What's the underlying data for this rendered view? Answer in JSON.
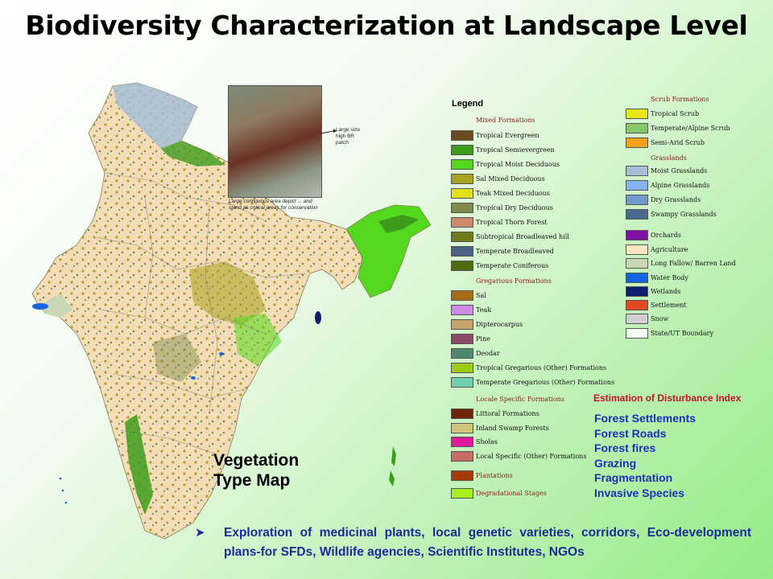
{
  "title": "Biodiversity Characterization at Landscape Level",
  "legend_title": "Legend",
  "map_label_line1": "Vegetation",
  "map_label_line2": "Type Map",
  "inset": {
    "note_line1": "Large size",
    "note_line2": "high BR",
    "note_line3": "patch",
    "caption_line1": "Large contiguous area depict ... and",
    "caption_line2": "stand as critical areas for conservation"
  },
  "legend_sections": [
    {
      "heading": "Mixed Formations",
      "items": [
        {
          "label": "Tropical Evergreen",
          "color": "#6b4a1e"
        },
        {
          "label": "Tropical Semievergreen",
          "color": "#3e9c1c"
        },
        {
          "label": "Tropical Moist Deciduous",
          "color": "#54d81e"
        },
        {
          "label": "Sal Mixed Deciduous",
          "color": "#a9a321"
        },
        {
          "label": "Teak Mixed Deciduous",
          "color": "#e2e21c"
        },
        {
          "label": "Tropical Dry Deciduous",
          "color": "#7f8a4c"
        },
        {
          "label": "Tropical Thorn Forest",
          "color": "#cc8a6a"
        },
        {
          "label": "Subtropical Broadleaved hill",
          "color": "#6f7a1a"
        },
        {
          "label": "Temperate Broadleaved",
          "color": "#4b6286"
        },
        {
          "label": "Temperate Coniferous",
          "color": "#4f6c10"
        }
      ]
    },
    {
      "heading": "Gregarious Formations",
      "items": [
        {
          "label": "Sal",
          "color": "#a46a14"
        },
        {
          "label": "Teak",
          "color": "#cf8ae6"
        },
        {
          "label": "Dipterocarpus",
          "color": "#c8a46c"
        },
        {
          "label": "Pine",
          "color": "#8c4a6a"
        },
        {
          "label": "Deodar",
          "color": "#4e8a6e"
        },
        {
          "label": "Tropical Gregarious (Other) Formations",
          "color": "#9ccc14"
        },
        {
          "label": "Temperate Gregarious (Other) Formations",
          "color": "#6ed0ae"
        }
      ]
    },
    {
      "heading": "Locale Specific Formations",
      "items": [
        {
          "label": "Littoral Formations",
          "color": "#6e2408"
        },
        {
          "label": "Inland Swamp Forests",
          "color": "#d2c47a"
        },
        {
          "label": "Sholas",
          "color": "#e0189c"
        },
        {
          "label": "Local Specific (Other) Formations",
          "color": "#c86c66"
        }
      ]
    },
    {
      "heading": "Plantations",
      "items": [
        {
          "label": "Plantations",
          "color": "#a83a08"
        },
        {
          "label": "Degradational Stages",
          "color": "#a6ee1c"
        }
      ]
    },
    {
      "heading": "Scrub Formations",
      "items": [
        {
          "label": "Tropical Scrub",
          "color": "#e6e61c"
        },
        {
          "label": "Temperate/Alpine Scrub",
          "color": "#88c86a"
        },
        {
          "label": "Semi-Arid Scrub",
          "color": "#f4a21c"
        }
      ]
    },
    {
      "heading": "Grasslands",
      "items": [
        {
          "label": "Moist Grasslands",
          "color": "#a6bed6"
        },
        {
          "label": "Alpine Grasslands",
          "color": "#84b4ec"
        },
        {
          "label": "Dry Grasslands",
          "color": "#6e9ad0"
        },
        {
          "label": "Swampy Grasslands",
          "color": "#4a6a8e"
        }
      ]
    },
    {
      "heading": "",
      "items": [
        {
          "label": "Orchards",
          "color": "#7e10a6"
        },
        {
          "label": "Agriculture",
          "color": "#f8e4c0"
        },
        {
          "label": "Long Fallow/ Barren Land",
          "color": "#c8d8b4"
        },
        {
          "label": "Water Body",
          "color": "#1464e0"
        },
        {
          "label": "Wetlands",
          "color": "#0c1e6c"
        },
        {
          "label": "Settlement",
          "color": "#e04a24"
        },
        {
          "label": "Snow",
          "color": "#d0d0d0"
        },
        {
          "label": "State/UT Boundary",
          "color": "#f4fff0"
        }
      ]
    }
  ],
  "disturbance": {
    "title": "Estimation of Disturbance Index",
    "items": [
      "Forest Settlements",
      "Forest Roads",
      "Forest fires",
      "Grazing",
      "Fragmentation",
      "Invasive Species"
    ]
  },
  "bottom_text": "Exploration of medicinal plants, local genetic varieties, corridors, Eco-development plans-for SFDs, Wildlife agencies, Scientific Institutes, NGOs"
}
